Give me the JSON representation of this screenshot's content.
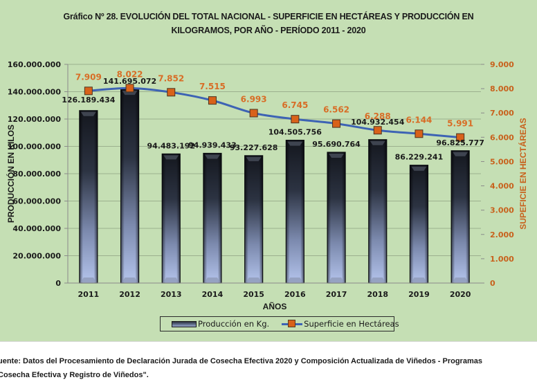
{
  "chart_data": {
    "type": "bar+line",
    "title_lines": [
      "Gráfico Nº 28. EVOLUCIÓN DEL TOTAL NACIONAL - SUPERFICIE EN HECTÁREAS Y PRODUCCIÓN EN",
      "KILOGRAMOS, POR AÑO - PERÍODO 2011 - 2020"
    ],
    "xlabel": "AÑOS",
    "ylabel_left": "PRODUCCIÓN EN KILOS",
    "ylabel_right": "SUPEFICIE EN HECTÁREAS",
    "categories": [
      "2011",
      "2012",
      "2013",
      "2014",
      "2015",
      "2016",
      "2017",
      "2018",
      "2019",
      "2020"
    ],
    "y_left": {
      "range": [
        0,
        160000000
      ],
      "ticks": [
        0,
        20000000,
        40000000,
        60000000,
        80000000,
        100000000,
        120000000,
        140000000,
        160000000
      ],
      "tick_labels": [
        "0",
        "20.000.000",
        "40.000.000",
        "60.000.000",
        "80.000.000",
        "100.000.000",
        "120.000.000",
        "140.000.000",
        "160.000.000"
      ]
    },
    "y_right": {
      "range": [
        0,
        9000
      ],
      "ticks": [
        0,
        1000,
        2000,
        3000,
        4000,
        5000,
        6000,
        7000,
        8000,
        9000
      ],
      "tick_labels": [
        "0",
        "1.000",
        "2.000",
        "3.000",
        "4.000",
        "5.000",
        "6.000",
        "7.000",
        "8.000",
        "9.000"
      ]
    },
    "grid": true,
    "legend_position": "bottom",
    "series": [
      {
        "name": "Producción en Kg.",
        "type": "bar",
        "axis": "left",
        "values": [
          126189434,
          141695072,
          94483192,
          94939433,
          93227628,
          104505756,
          95690764,
          104932454,
          86229241,
          96825777
        ],
        "labels": [
          "126.189.434",
          "141.695.072",
          "94.483.192",
          "94.939.433",
          "93.227.628",
          "104.505.756",
          "95.690.764",
          "104.932.454",
          "86.229.241",
          "96.825.777"
        ]
      },
      {
        "name": "Superficie en Hectáreas",
        "type": "line",
        "axis": "right",
        "values": [
          7909,
          8022,
          7852,
          7515,
          6993,
          6745,
          6562,
          6288,
          6144,
          5991
        ],
        "labels": [
          "7.909",
          "8.022",
          "7.852",
          "7.515",
          "6.993",
          "6.745",
          "6.562",
          "6.288",
          "6.144",
          "5.991"
        ]
      }
    ],
    "colors": {
      "background": "#c5dfb4",
      "line": "#3d63b4",
      "marker": "#d8621a",
      "right_axis": "#c8611c",
      "line_labels": "#d86d26",
      "gridline": "#9cb08e"
    }
  },
  "source_lines": [
    "uente: Datos del Procesamiento de Declaración Jurada de Cosecha Efectiva 2020 y Composición Actualizada de Viñedos - Programas",
    "Cosecha Efectiva y Registro de Viñedos\"."
  ]
}
